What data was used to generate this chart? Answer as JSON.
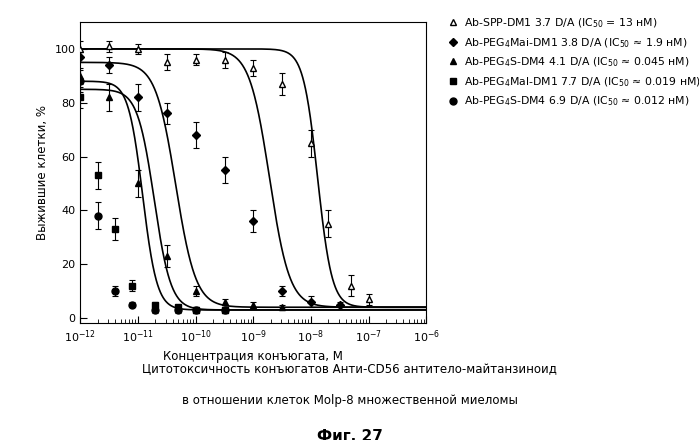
{
  "title_line1": "Цитотоксичность конъюгатов Анти-CD56 антитело-майтанзиноид",
  "title_line2": "в отношении клеток Molp-8 множественной миеломы",
  "fig_label": "Фиг. 27",
  "xlabel": "Концентрация конъюгата, М",
  "ylabel": "Выжившие клетки, %",
  "xlim_log": [
    -12,
    -6
  ],
  "ylim": [
    -2,
    110
  ],
  "yticks": [
    0,
    20,
    40,
    60,
    80,
    100
  ],
  "series": [
    {
      "label": "Ab-SPP-DM1 3.7 D/A (IC$_{50}$ = 13 нМ)",
      "ic50_log": -7.886,
      "top": 100,
      "bottom": 4,
      "hill": 3.5,
      "marker": "^",
      "fillstyle": "none",
      "color": "black",
      "points_x": [
        -12,
        -11.5,
        -11,
        -10.5,
        -10,
        -9.5,
        -9,
        -8.5,
        -8,
        -7.7,
        -7.3,
        -7.0
      ],
      "points_y": [
        100,
        101,
        100,
        95,
        96,
        96,
        93,
        87,
        65,
        35,
        12,
        7
      ],
      "errors_y": [
        3,
        2,
        2,
        3,
        2,
        3,
        3,
        4,
        5,
        5,
        4,
        2
      ]
    },
    {
      "label": "Ab-PEG$_4$Mai-DM1 3.8 D/A (IC$_{50}$ ≈ 1.9 нМ)",
      "ic50_log": -8.72,
      "top": 100,
      "bottom": 4,
      "hill": 2.5,
      "marker": "D",
      "fillstyle": "full",
      "color": "black",
      "points_x": [
        -12,
        -11.5,
        -11,
        -10.5,
        -10,
        -9.5,
        -9,
        -8.5,
        -8,
        -7.5
      ],
      "points_y": [
        97,
        94,
        82,
        76,
        68,
        55,
        36,
        10,
        6,
        5
      ],
      "errors_y": [
        2,
        3,
        5,
        4,
        5,
        5,
        4,
        2,
        2,
        1
      ]
    },
    {
      "label": "Ab-PEG$_4$S-DM4 4.1 D/A (IC$_{50}$ ≈ 0.045 нМ)",
      "ic50_log": -10.347,
      "top": 95,
      "bottom": 4,
      "hill": 2.5,
      "marker": "^",
      "fillstyle": "full",
      "color": "black",
      "points_x": [
        -12,
        -11.5,
        -11,
        -10.5,
        -10,
        -9.5,
        -9,
        -8.5
      ],
      "points_y": [
        90,
        82,
        50,
        23,
        10,
        6,
        5,
        4
      ],
      "errors_y": [
        3,
        5,
        5,
        4,
        2,
        1,
        1,
        1
      ]
    },
    {
      "label": "Ab-PEG$_4$Mal-DM1 7.7 D/A (IC$_{50}$ ≈ 0.019 нМ)",
      "ic50_log": -10.72,
      "top": 85,
      "bottom": 3,
      "hill": 3.0,
      "marker": "s",
      "fillstyle": "full",
      "color": "black",
      "points_x": [
        -12,
        -11.7,
        -11.4,
        -11.1,
        -10.7,
        -10.3,
        -10.0,
        -9.5
      ],
      "points_y": [
        82,
        53,
        33,
        12,
        5,
        4,
        3,
        3
      ],
      "errors_y": [
        4,
        5,
        4,
        2,
        1,
        1,
        1,
        1
      ]
    },
    {
      "label": "Ab-PEG$_4$S-DM4 6.9 D/A (IC$_{50}$ ≈ 0.012 нМ)",
      "ic50_log": -10.92,
      "top": 88,
      "bottom": 3,
      "hill": 3.5,
      "marker": "o",
      "fillstyle": "full",
      "color": "black",
      "points_x": [
        -12,
        -11.7,
        -11.4,
        -11.1,
        -10.7,
        -10.3,
        -10.0,
        -9.5
      ],
      "points_y": [
        88,
        38,
        10,
        5,
        3,
        3,
        3,
        3
      ],
      "errors_y": [
        4,
        5,
        2,
        1,
        1,
        1,
        1,
        1
      ]
    }
  ]
}
